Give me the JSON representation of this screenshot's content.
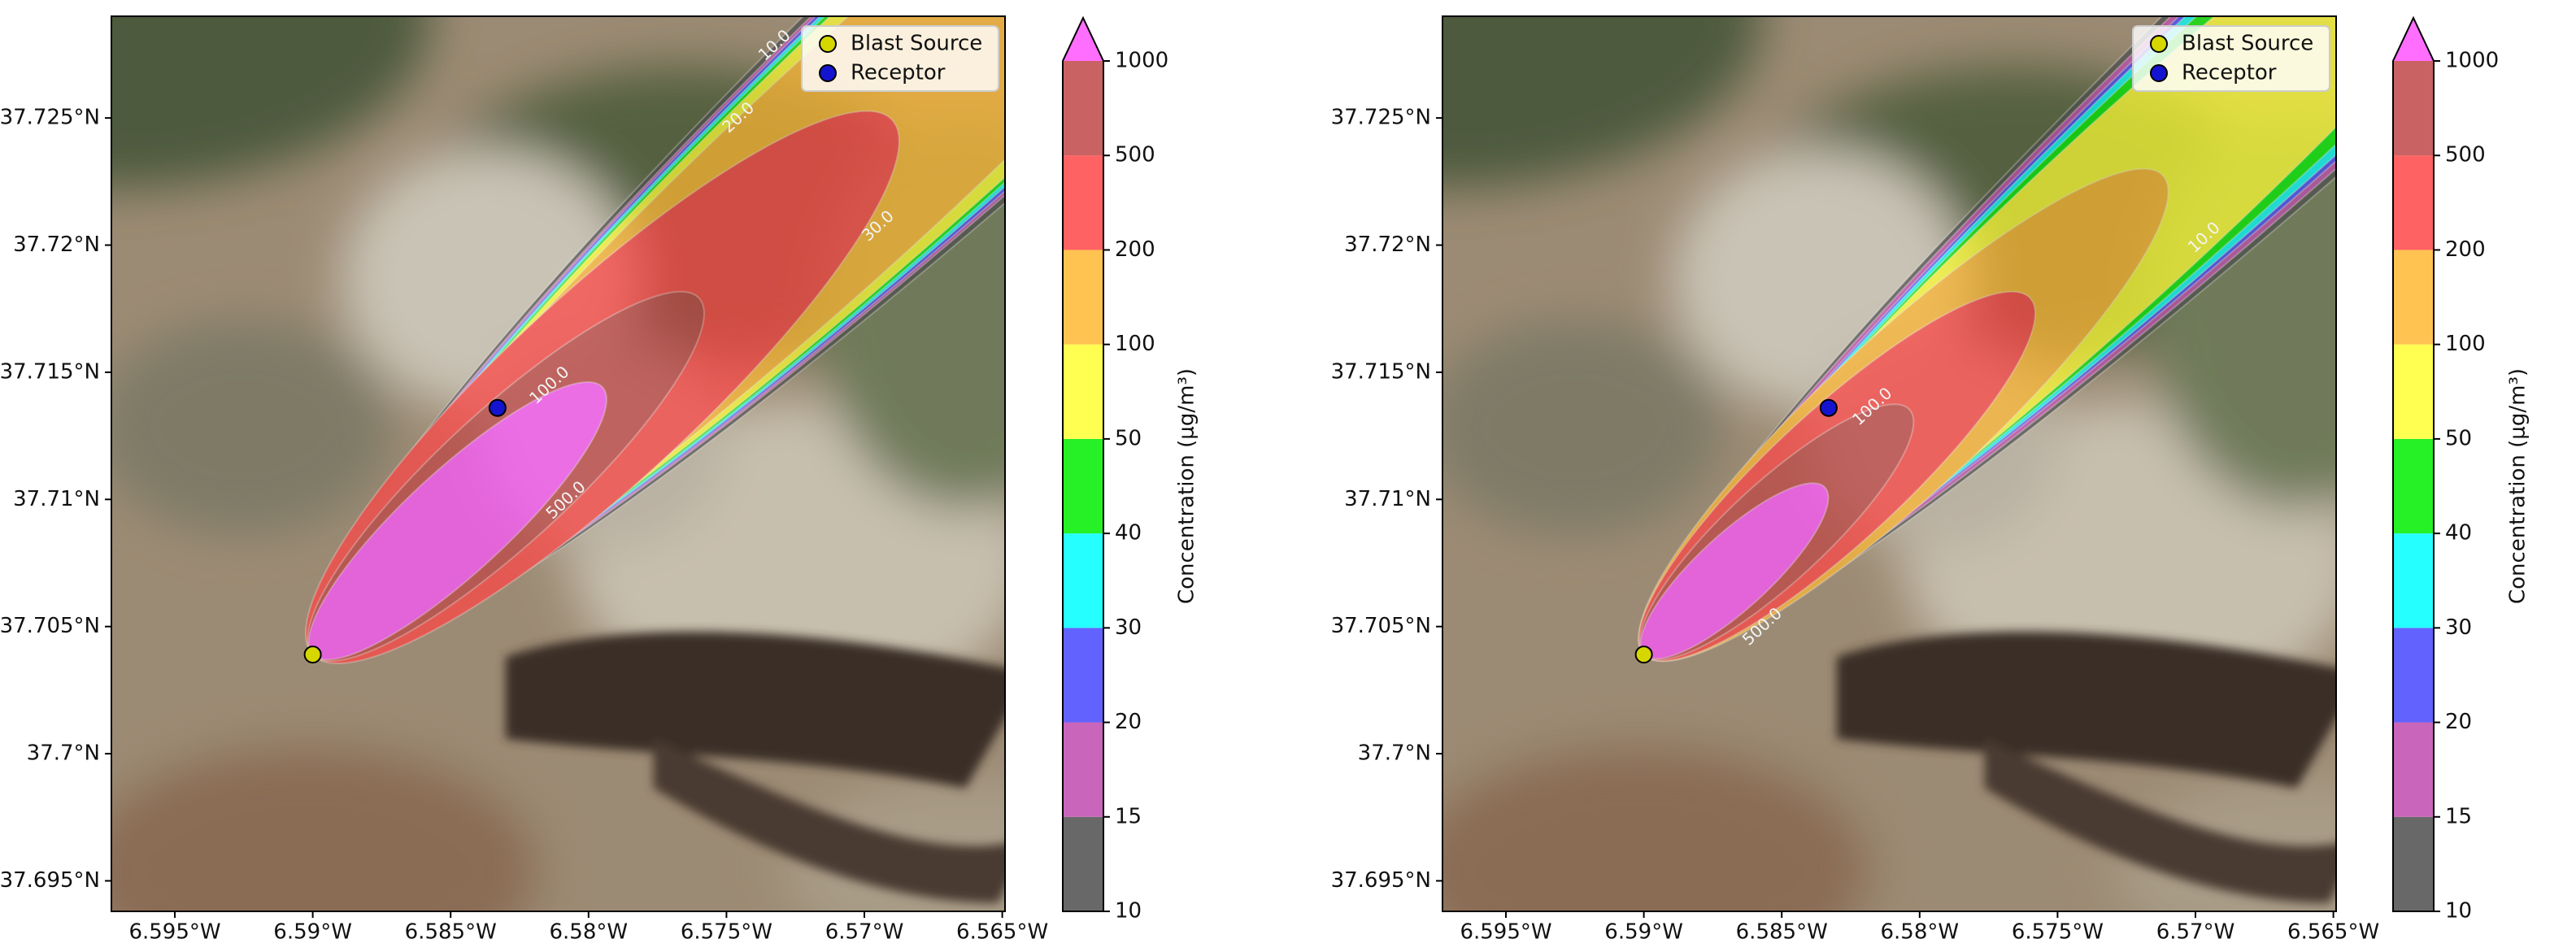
{
  "chart_data": [
    {
      "type": "plume-map",
      "xlim": [
        -6.5973,
        -6.5649
      ],
      "ylim": [
        37.6938,
        37.729
      ],
      "xticks": [
        {
          "value": -6.595,
          "label": "6.595°W"
        },
        {
          "value": -6.59,
          "label": "6.59°W"
        },
        {
          "value": -6.585,
          "label": "6.585°W"
        },
        {
          "value": -6.58,
          "label": "6.58°W"
        },
        {
          "value": -6.575,
          "label": "6.575°W"
        },
        {
          "value": -6.57,
          "label": "6.57°W"
        },
        {
          "value": -6.565,
          "label": "6.565°W"
        }
      ],
      "yticks": [
        {
          "value": 37.695,
          "label": "37.695°N"
        },
        {
          "value": 37.7,
          "label": "37.7°N"
        },
        {
          "value": 37.705,
          "label": "37.705°N"
        },
        {
          "value": 37.71,
          "label": "37.71°N"
        },
        {
          "value": 37.715,
          "label": "37.715°N"
        },
        {
          "value": 37.72,
          "label": "37.72°N"
        },
        {
          "value": 37.725,
          "label": "37.725°N"
        }
      ],
      "source": {
        "name": "Blast Source",
        "lon": -6.59,
        "lat": 37.7039,
        "color": "#d6d600"
      },
      "receptor": {
        "name": "Receptor",
        "lon": -6.5833,
        "lat": 37.7136,
        "color": "#1414d0"
      },
      "colorbar": {
        "label": "Concentration (μg/m³)",
        "levels": [
          10,
          15,
          20,
          30,
          40,
          50,
          100,
          200,
          500,
          1000
        ],
        "colors": [
          "#4d4d4d",
          "#c04bb0",
          "#4646ff",
          "#00ffff",
          "#00ee00",
          "#ffff33",
          "#ffb833",
          "#ff4646",
          "#c04646",
          "#ff55ff"
        ]
      },
      "contour_labels": [
        "10.0",
        "20.0",
        "30.0",
        "100.0",
        "500.0"
      ]
    },
    {
      "type": "plume-map",
      "xlim": [
        -6.5973,
        -6.5649
      ],
      "ylim": [
        37.6938,
        37.729
      ],
      "xticks": [
        {
          "value": -6.595,
          "label": "6.595°W"
        },
        {
          "value": -6.59,
          "label": "6.59°W"
        },
        {
          "value": -6.585,
          "label": "6.585°W"
        },
        {
          "value": -6.58,
          "label": "6.58°W"
        },
        {
          "value": -6.575,
          "label": "6.575°W"
        },
        {
          "value": -6.57,
          "label": "6.57°W"
        },
        {
          "value": -6.565,
          "label": "6.565°W"
        }
      ],
      "yticks": [
        {
          "value": 37.695,
          "label": "37.695°N"
        },
        {
          "value": 37.7,
          "label": "37.7°N"
        },
        {
          "value": 37.705,
          "label": "37.705°N"
        },
        {
          "value": 37.71,
          "label": "37.71°N"
        },
        {
          "value": 37.715,
          "label": "37.715°N"
        },
        {
          "value": 37.72,
          "label": "37.72°N"
        },
        {
          "value": 37.725,
          "label": "37.725°N"
        }
      ],
      "source": {
        "name": "Blast Source",
        "lon": -6.59,
        "lat": 37.7039,
        "color": "#d6d600"
      },
      "receptor": {
        "name": "Receptor",
        "lon": -6.5833,
        "lat": 37.7136,
        "color": "#1414d0"
      },
      "colorbar": {
        "label": "Concentration (μg/m³)",
        "levels": [
          10,
          15,
          20,
          30,
          40,
          50,
          100,
          200,
          500,
          1000
        ],
        "colors": [
          "#4d4d4d",
          "#c04bb0",
          "#4646ff",
          "#00ffff",
          "#00ee00",
          "#ffff33",
          "#ffb833",
          "#ff4646",
          "#c04646",
          "#ff55ff"
        ]
      },
      "contour_labels": [
        "10.0",
        "100.0",
        "500.0"
      ]
    }
  ]
}
